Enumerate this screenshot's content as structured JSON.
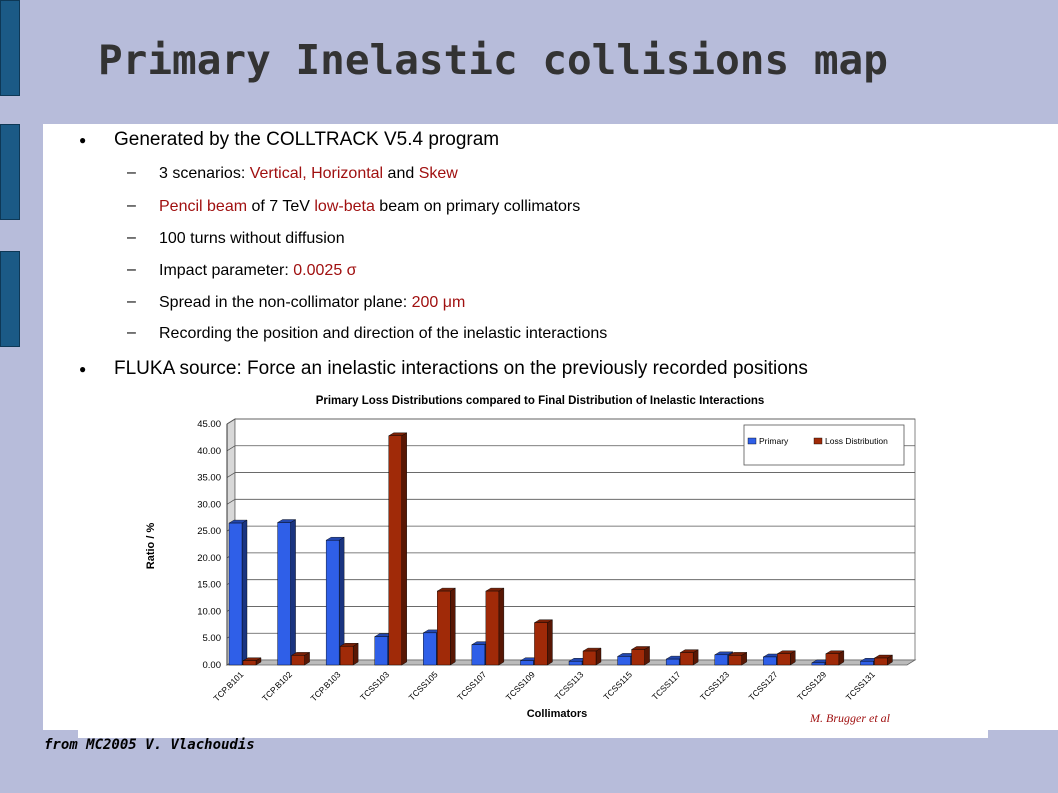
{
  "slide": {
    "title": "Primary Inelastic collisions map",
    "footer": "from MC2005 V. Vlachoudis",
    "credit": "M. Brugger et al",
    "bullet1": "Generated by the COLLTRACK V5.4 program",
    "sub1": {
      "a": "3 scenarios: ",
      "b": "Vertical, Horizontal",
      "c": " and ",
      "d": "Skew"
    },
    "sub2": {
      "a": "Pencil beam",
      "b": " of 7 TeV ",
      "c": "low-beta",
      "d": " beam on primary collimators"
    },
    "sub3": "100 turns without diffusion",
    "sub4": {
      "a": "Impact parameter: ",
      "b": "0.0025 σ"
    },
    "sub5": {
      "a": "Spread in the non-collimator plane: ",
      "b": "200 μm"
    },
    "sub6": "Recording the position and direction of the inelastic interactions",
    "bullet2": "FLUKA source: Force an inelastic interactions on the previously recorded positions",
    "bullet_glyph": "●",
    "dash_glyph": "–"
  },
  "colors": {
    "primary": "#2f5fe8",
    "loss": "#a02a08",
    "accent_red": "#a01010",
    "sidebar": "#1b5a86",
    "background": "#b7bcda"
  },
  "chart_data": {
    "type": "bar",
    "title": "Primary Loss Distributions compared to Final Distribution of Inelastic Interactions",
    "xlabel": "Collimators",
    "ylabel": "Ratio / %",
    "ylim": [
      0,
      45
    ],
    "yticks": [
      "0.00",
      "5.00",
      "10.00",
      "15.00",
      "20.00",
      "25.00",
      "30.00",
      "35.00",
      "40.00",
      "45.00"
    ],
    "grid": true,
    "legend_position": "top-right",
    "categories": [
      "TCP.B101",
      "TCP.B102",
      "TCP.B103",
      "TCSS103",
      "TCSS105",
      "TCSS107",
      "TCSS109",
      "TCSS113",
      "TCSS115",
      "TCSS117",
      "TCSS123",
      "TCSS127",
      "TCSS129",
      "TCSS131"
    ],
    "series": [
      {
        "name": "Primary",
        "values": [
          26.5,
          26.6,
          23.3,
          5.3,
          6.0,
          3.8,
          0.8,
          0.7,
          1.6,
          1.1,
          1.9,
          1.5,
          0.4,
          0.7
        ]
      },
      {
        "name": "Loss Distribution",
        "values": [
          0.8,
          1.8,
          3.5,
          42.8,
          13.8,
          13.8,
          7.9,
          2.6,
          2.9,
          2.3,
          1.8,
          2.1,
          2.1,
          1.3
        ]
      }
    ]
  }
}
